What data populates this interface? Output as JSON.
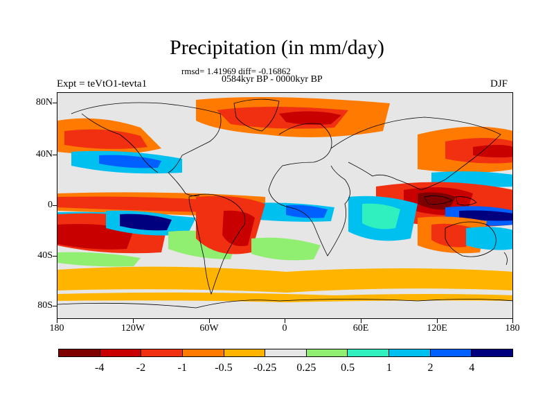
{
  "title": "Precipitation (in mm/day)",
  "stats_line": "rmsd= 1.41969 diff= -0.16862",
  "period": "0584kyr BP - 0000kyr BP",
  "experiment": "Expt = teVtO1-tevta1",
  "season": "DJF",
  "lat_labels": [
    "80N",
    "40N",
    "0",
    "40S",
    "80S"
  ],
  "lon_labels": [
    "180",
    "120W",
    "60W",
    "0",
    "60E",
    "120E",
    "180"
  ],
  "colorbar": {
    "colors": [
      "#7f0000",
      "#c80000",
      "#f03010",
      "#ff7a00",
      "#ffb400",
      "#e6e6e6",
      "#90ee70",
      "#30f0c0",
      "#00c0f0",
      "#0060ff",
      "#00007f"
    ],
    "labels": [
      "-4",
      "-2",
      "-1",
      "-0.5",
      "-0.25",
      "0.25",
      "0.5",
      "1",
      "2",
      "4"
    ]
  },
  "map_colors": {
    "background": "#e6e6e6",
    "dry_strong": "#c80000",
    "dry_mid": "#f03010",
    "dry_light": "#ff7a00",
    "dry_faint": "#ffb400",
    "wet_faint": "#90ee70",
    "wet_light": "#30f0c0",
    "wet_mid": "#00c0f0",
    "wet_strong": "#0060ff",
    "wet_max": "#00007f",
    "dry_max": "#7f0000"
  }
}
